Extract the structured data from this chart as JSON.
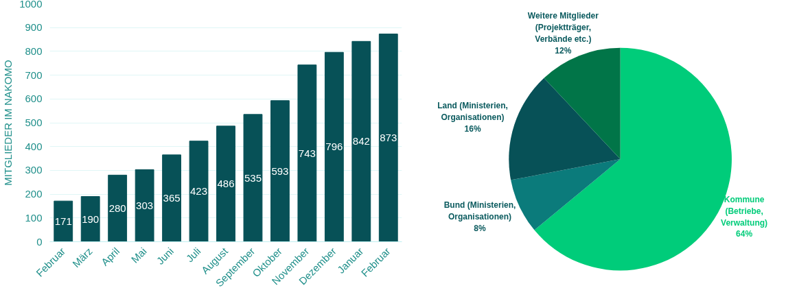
{
  "chart_data": [
    {
      "type": "bar",
      "ylabel": "MITGLIEDER IM NAKOMO",
      "categories": [
        "Februar",
        "März",
        "April",
        "Mai",
        "Juni",
        "Juli",
        "August",
        "September",
        "Oktober",
        "November",
        "Dezember",
        "Januar",
        "Februar"
      ],
      "values": [
        171,
        190,
        280,
        303,
        365,
        423,
        486,
        535,
        593,
        743,
        796,
        842,
        873
      ],
      "color": "#075157",
      "ylim": [
        0,
        1000
      ],
      "yticks": [
        0,
        100,
        200,
        300,
        400,
        500,
        600,
        700,
        800,
        900,
        1000
      ],
      "grid": "y",
      "data_labels": true
    },
    {
      "type": "pie",
      "categories": [
        "Kommune\n(Betriebe,\nVerwaltung)",
        "Bund (Ministerien,\nOrganisationen)",
        "Land (Ministerien,\nOrganisationen)",
        "Weitere Mitglieder\n(Projektträger,\nVerbände etc.)"
      ],
      "values": [
        64,
        8,
        16,
        12
      ],
      "value_labels": [
        "64%",
        "8%",
        "16%",
        "12%"
      ],
      "colors": [
        "#00cc7a",
        "#0b7b7b",
        "#075157",
        "#017548"
      ]
    }
  ]
}
